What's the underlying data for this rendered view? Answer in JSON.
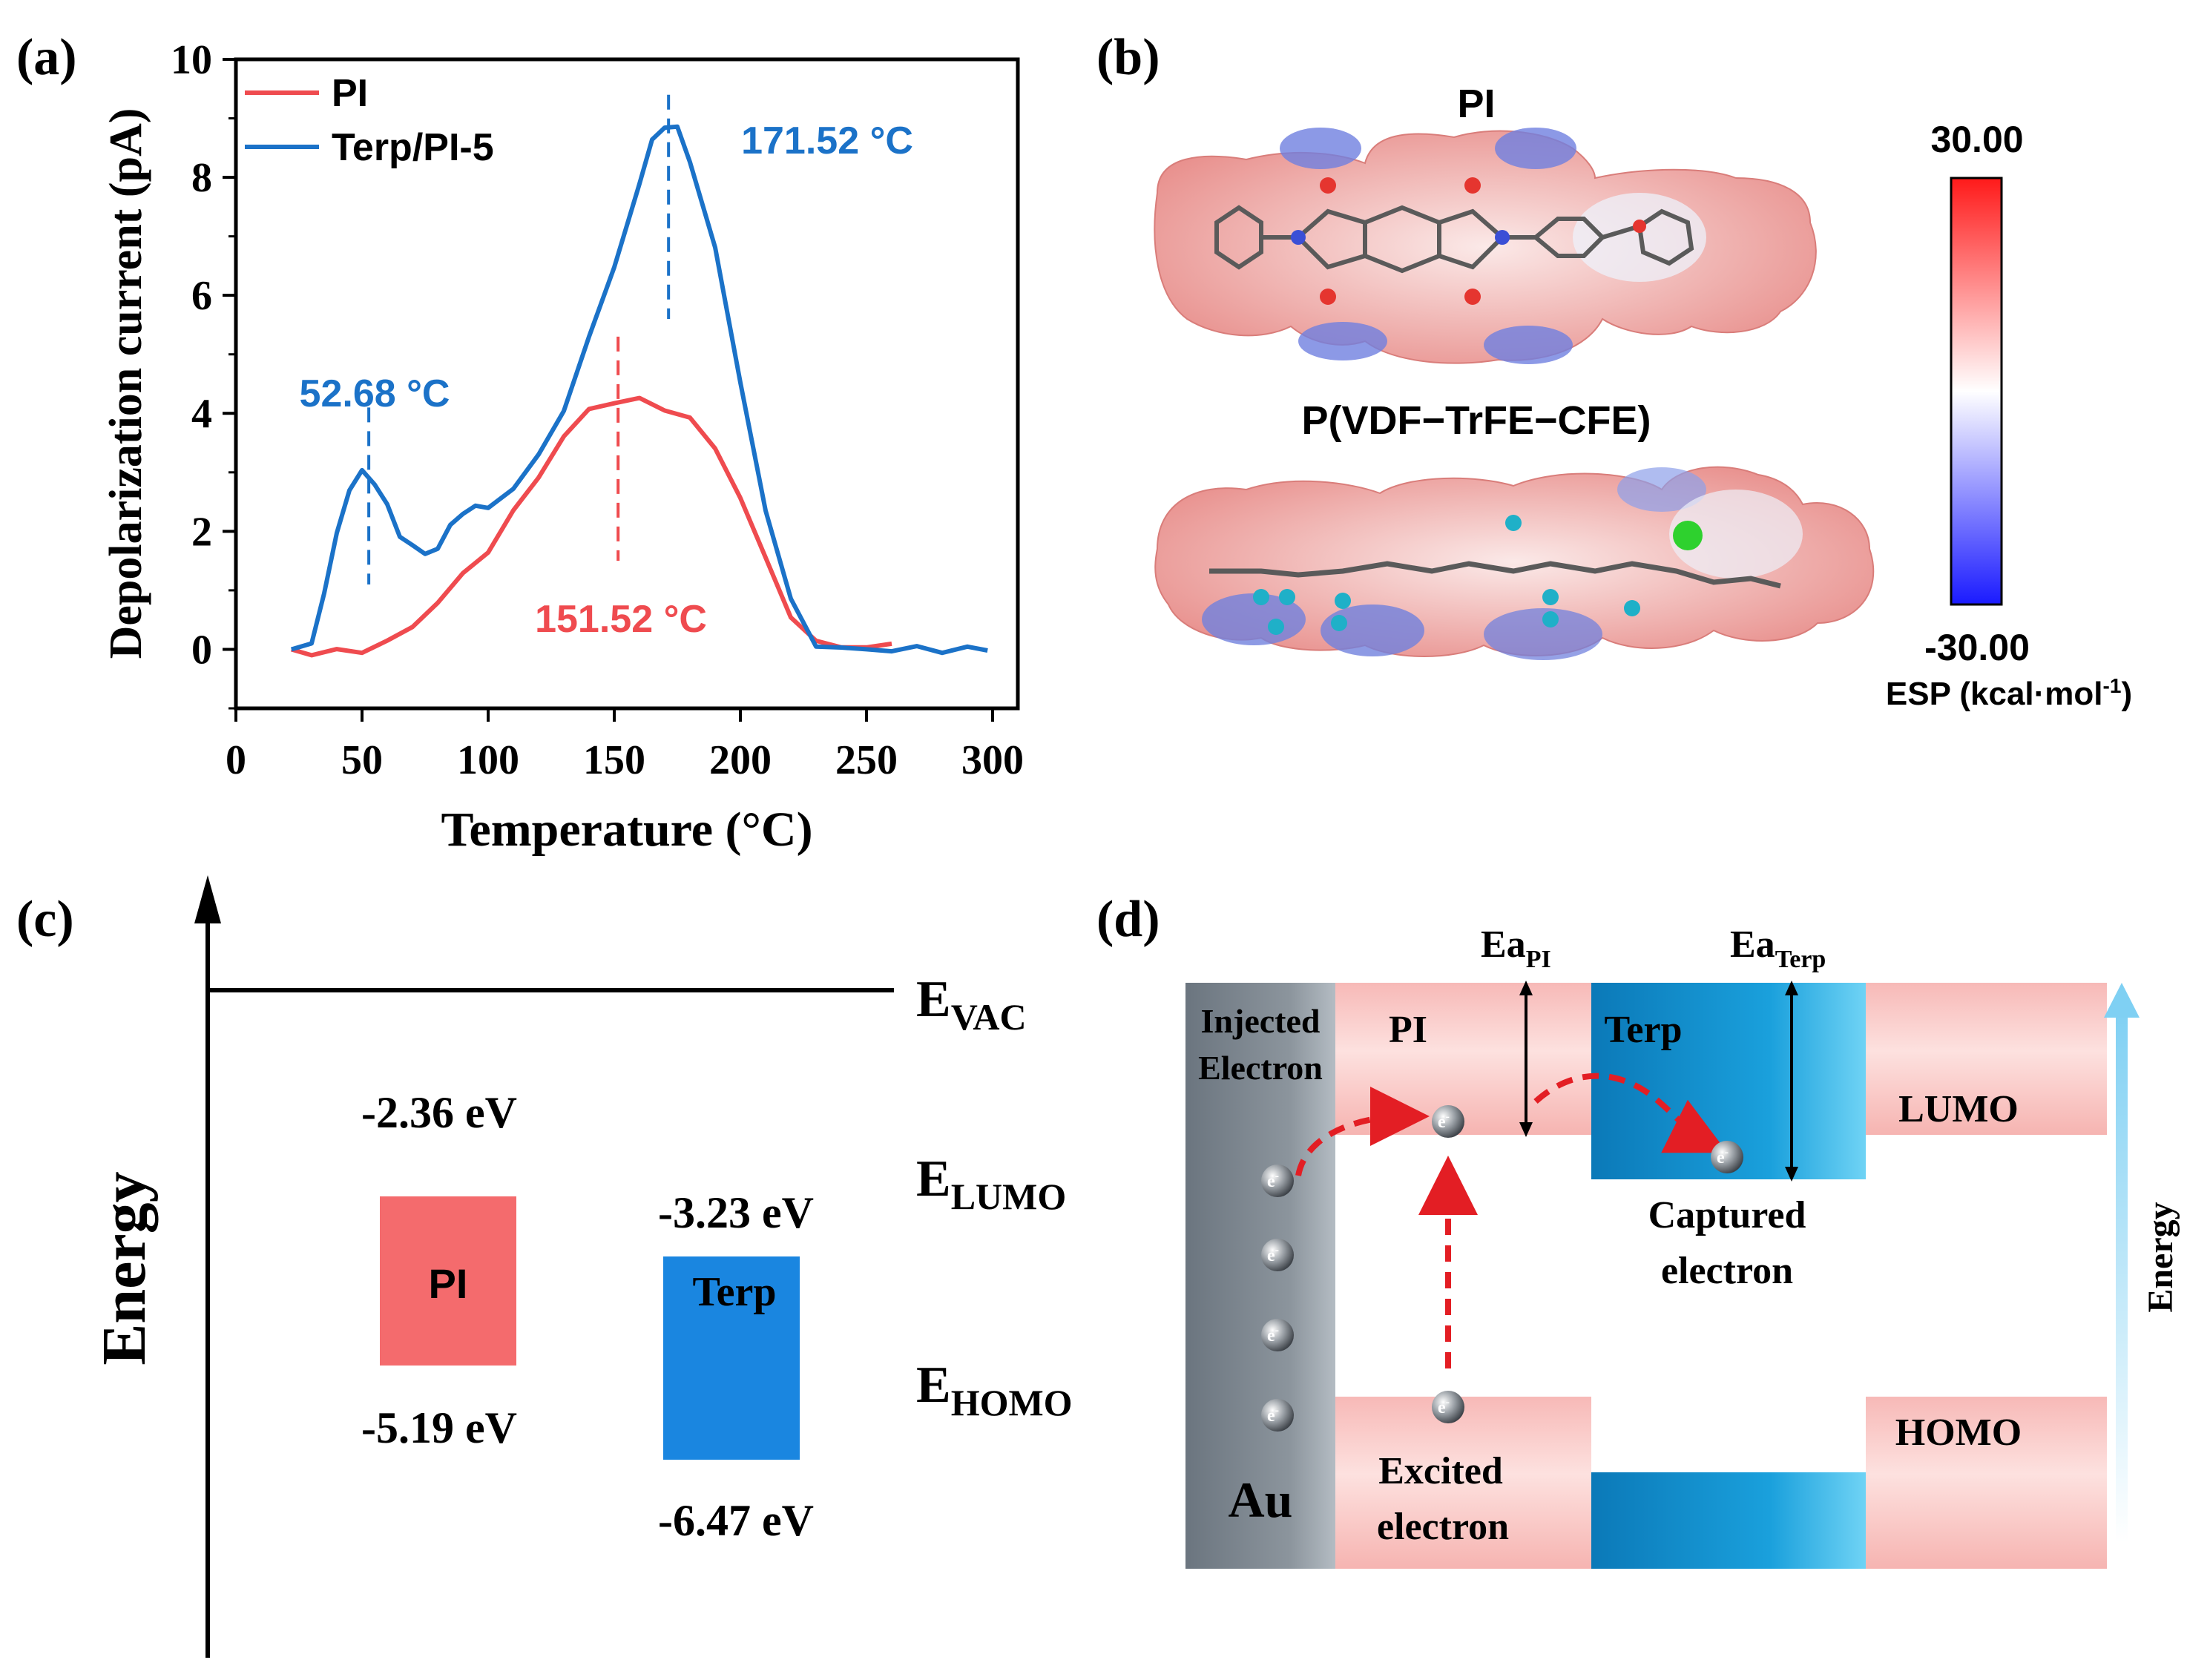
{
  "panels": {
    "a": "(a)",
    "b": "(b)",
    "c": "(c)",
    "d": "(d)"
  },
  "colors": {
    "pi": "#ef4b4f",
    "terp": "#1b72c8",
    "axis": "#000000"
  },
  "chart_data": {
    "type": "line",
    "xlabel": "Temperature (°C)",
    "ylabel": "Depolarization current (pA)",
    "xlim": [
      0,
      310
    ],
    "ylim": [
      -1,
      10
    ],
    "xticks": [
      "0",
      "50",
      "100",
      "150",
      "200",
      "250",
      "300"
    ],
    "yticks": [
      "0",
      "2",
      "4",
      "6",
      "8",
      "10"
    ],
    "legend_position": "top-left",
    "series": [
      {
        "name": "PI",
        "color": "#ef4b4f",
        "x": [
          22,
          30,
          40,
          50,
          60,
          70,
          80,
          90,
          100,
          110,
          120,
          130,
          140,
          150,
          160,
          170,
          180,
          190,
          200,
          210,
          220,
          230,
          240,
          250,
          260
        ],
        "y": [
          0,
          -0.1,
          -0.05,
          0,
          0.1,
          0.4,
          0.8,
          1.25,
          1.7,
          2.3,
          2.95,
          3.6,
          4.05,
          4.22,
          4.2,
          4.1,
          3.9,
          3.4,
          2.6,
          1.5,
          0.6,
          0.1,
          0.05,
          0.05,
          0.05
        ]
      },
      {
        "name": "Terp/PI-5",
        "color": "#1b72c8",
        "x": [
          22,
          30,
          35,
          40,
          45,
          50,
          55,
          60,
          65,
          70,
          75,
          80,
          85,
          90,
          95,
          100,
          110,
          120,
          130,
          140,
          150,
          160,
          165,
          170,
          175,
          180,
          190,
          200,
          210,
          220,
          230,
          240,
          250,
          260,
          270,
          280,
          290,
          298
        ],
        "y": [
          0,
          0.1,
          0.9,
          2.0,
          2.7,
          3.0,
          2.85,
          2.4,
          1.95,
          1.75,
          1.6,
          1.75,
          2.05,
          2.35,
          2.4,
          2.4,
          2.75,
          3.25,
          4.1,
          5.25,
          6.5,
          7.9,
          8.6,
          8.9,
          8.8,
          8.3,
          6.8,
          4.5,
          2.4,
          0.8,
          0.1,
          0,
          0,
          0,
          0,
          0,
          0,
          0
        ]
      }
    ],
    "annotations": [
      {
        "x": 52.68,
        "y_top": 4.1,
        "y_bottom": 1.1,
        "label": "52.68 °C",
        "series": "Terp/PI-5"
      },
      {
        "x": 171.52,
        "y_top": 9.4,
        "y_bottom": 5.6,
        "label": "171.52 °C",
        "series": "Terp/PI-5"
      },
      {
        "x": 151.52,
        "y_top": 5.3,
        "y_bottom": 1.5,
        "label": "151.52 °C",
        "series": "PI"
      }
    ]
  },
  "panel_b": {
    "molecule_1": "PI",
    "molecule_2": "P(VDF−TrFE−CFE)",
    "colorbar_max": "30.00",
    "colorbar_min": "-30.00",
    "colorbar_unit_prefix": "ESP (kcal·mol",
    "colorbar_unit_sup": "-1",
    "colorbar_unit_suffix": ")"
  },
  "panel_c": {
    "axis_label": "Energy",
    "e_vac_main": "E",
    "e_vac_sub": "VAC",
    "e_lumo_main": "E",
    "e_lumo_sub": "LUMO",
    "e_homo_main": "E",
    "e_homo_sub": "HOMO",
    "pi_label": "PI",
    "pi_lumo": "-2.36 eV",
    "pi_homo": "-5.19 eV",
    "terp_label": "Terp",
    "terp_lumo": "-3.23 eV",
    "terp_homo": "-6.47 eV"
  },
  "panel_d": {
    "injected_line1": "Injected",
    "injected_line2": "Electron",
    "au": "Au",
    "pi": "PI",
    "terp": "Terp",
    "ea_pi_main": "Ea",
    "ea_pi_sub": "PI",
    "ea_terp_main": "Ea",
    "ea_terp_sub": "Terp",
    "lumo": "LUMO",
    "homo": "HOMO",
    "captured_line1": "Captured",
    "captured_line2": "electron",
    "excited_line1": "Excited",
    "excited_line2": "electron",
    "energy": "Energy",
    "electron_symbol": "e",
    "electron_charge": "-"
  }
}
